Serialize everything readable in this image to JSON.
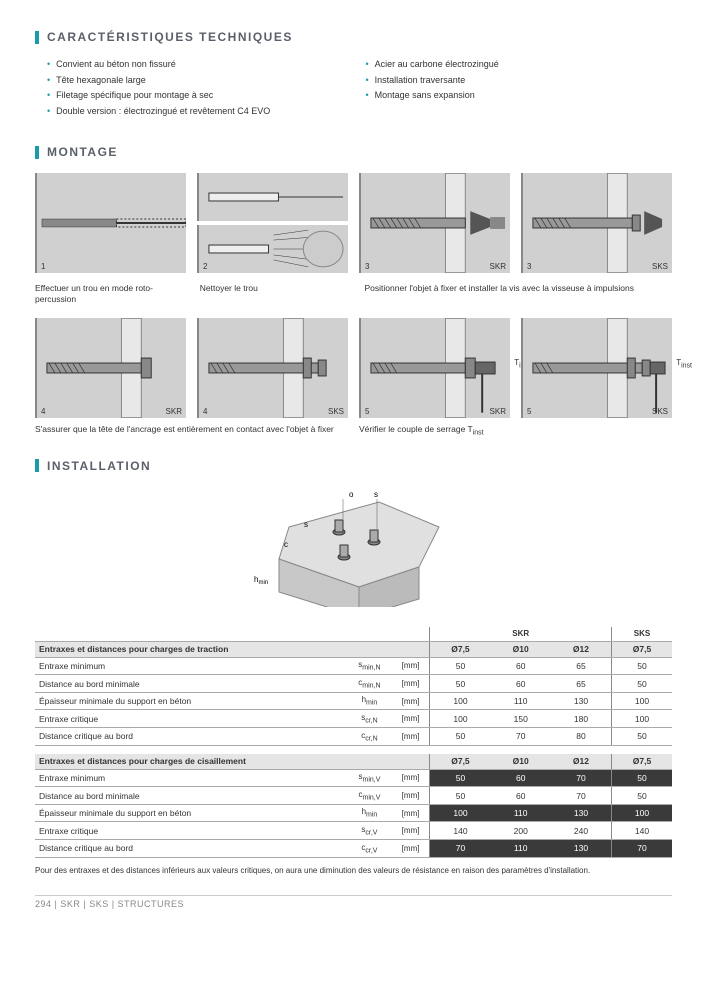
{
  "sections": {
    "tech": "CARACTÉRISTIQUES TECHNIQUES",
    "montage": "MONTAGE",
    "installation": "INSTALLATION"
  },
  "bullets_left": [
    "Convient au béton non fissuré",
    "Tête hexagonale large",
    "Filetage spécifique pour montage à sec",
    "Double version : électrozingué et revêtement C4 EVO"
  ],
  "bullets_right": [
    "Acier au carbone électrozingué",
    "Installation traversante",
    "Montage sans expansion"
  ],
  "montage": {
    "cap1": "Effectuer un trou en mode roto-percussion",
    "cap2": "Nettoyer le trou",
    "cap3": "Positionner l'objet à fixer et installer la vis avec la visseuse à impulsions",
    "cap4": "S'assurer que la tête de l'ancrage est entièrement en contact avec l'objet à fixer",
    "cap5": "Vérifier le couple de serrage Tinst",
    "skr": "SKR",
    "sks": "SKS",
    "tinst": "Tinst"
  },
  "diagram_labels": {
    "o": "o",
    "s": "s",
    "c": "c",
    "hmin": "hmin"
  },
  "table1": {
    "group_header": [
      "",
      "",
      "",
      "SKR",
      "SKS"
    ],
    "header": [
      "Entraxes et distances pour charges de traction",
      "",
      "",
      "Ø7,5",
      "Ø10",
      "Ø12",
      "Ø7,5"
    ],
    "rows": [
      [
        "Entraxe minimum",
        "smin,N",
        "[mm]",
        "50",
        "60",
        "65",
        "50"
      ],
      [
        "Distance au bord minimale",
        "cmin,N",
        "[mm]",
        "50",
        "60",
        "65",
        "50"
      ],
      [
        "Épaisseur minimale du support en béton",
        "hmin",
        "[mm]",
        "100",
        "110",
        "130",
        "100"
      ],
      [
        "Entraxe critique",
        "scr,N",
        "[mm]",
        "100",
        "150",
        "180",
        "100"
      ],
      [
        "Distance critique au bord",
        "ccr,N",
        "[mm]",
        "50",
        "70",
        "80",
        "50"
      ]
    ]
  },
  "table2": {
    "header": [
      "Entraxes et distances pour charges de cisaillement",
      "",
      "",
      "Ø7,5",
      "Ø10",
      "Ø12",
      "Ø7,5"
    ],
    "rows": [
      {
        "cells": [
          "Entraxe minimum",
          "smin,V",
          "[mm]",
          "50",
          "60",
          "70",
          "50"
        ],
        "hl": true
      },
      {
        "cells": [
          "Distance au bord minimale",
          "cmin,V",
          "[mm]",
          "50",
          "60",
          "70",
          "50"
        ],
        "hl": false
      },
      {
        "cells": [
          "Épaisseur minimale du support en béton",
          "hmin",
          "[mm]",
          "100",
          "110",
          "130",
          "100"
        ],
        "hl": true
      },
      {
        "cells": [
          "Entraxe critique",
          "scr,V",
          "[mm]",
          "140",
          "200",
          "240",
          "140"
        ],
        "hl": false
      },
      {
        "cells": [
          "Distance critique au bord",
          "ccr,V",
          "[mm]",
          "70",
          "110",
          "130",
          "70"
        ],
        "hl": true
      }
    ]
  },
  "note": "Pour des entraxes et des distances inférieurs aux valeurs critiques, on aura une diminution des valeurs de résistance en raison des paramètres d'installation.",
  "footer": "294  |  SKR | SKS  |  STRUCTURES",
  "colors": {
    "accent": "#1a9ba8",
    "concrete": "#d0d0d0",
    "header_gray": "#e5e5e5",
    "highlight_bg": "#3a3a3a"
  }
}
